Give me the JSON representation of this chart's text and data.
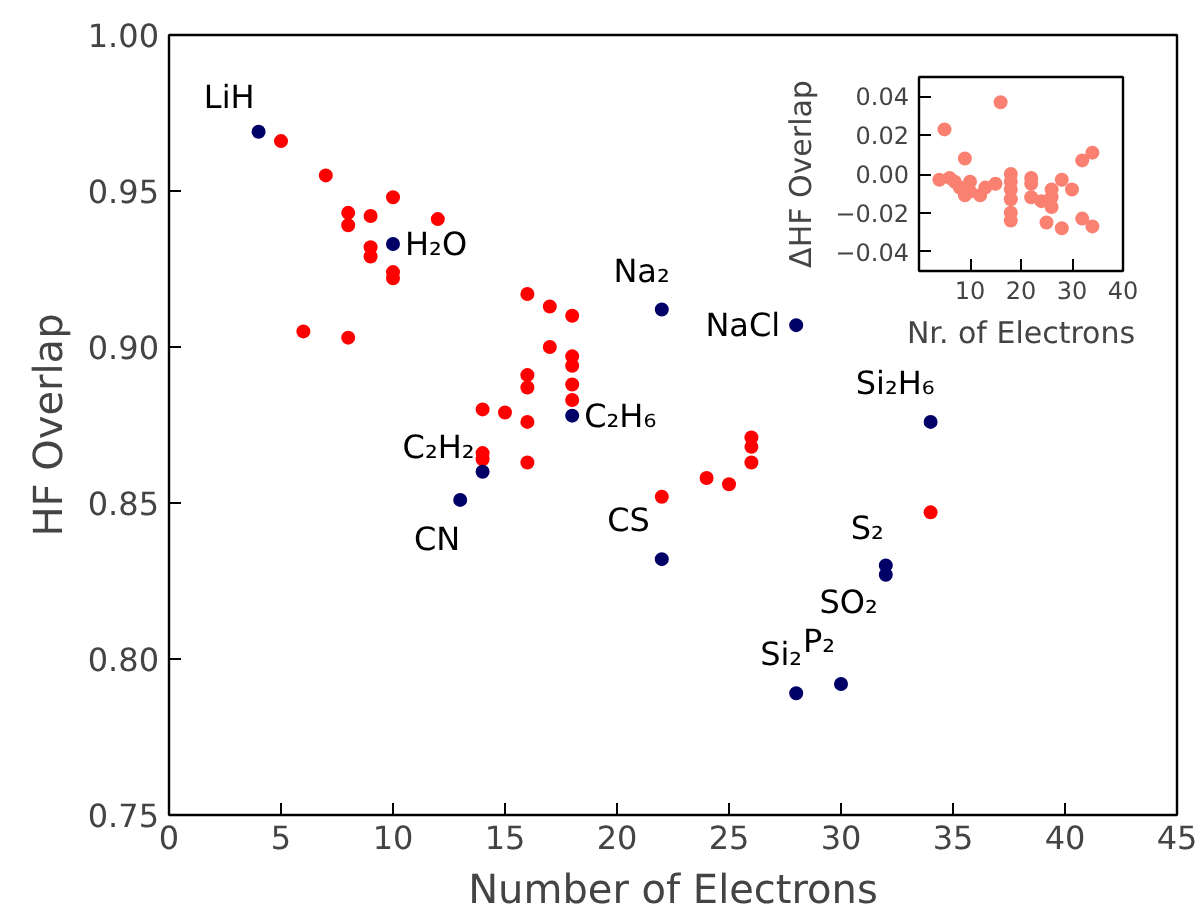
{
  "chart_data": [
    {
      "type": "scatter",
      "xlabel": "Number of Electrons",
      "ylabel": "HF Overlap",
      "xlim": [
        0,
        45
      ],
      "xticks": [
        0,
        5,
        10,
        15,
        20,
        25,
        30,
        35,
        40,
        45
      ],
      "ylim": [
        0.75,
        1.0
      ],
      "yticks": [
        {
          "value": 0.75,
          "label": "0.75"
        },
        {
          "value": 0.8,
          "label": "0.80"
        },
        {
          "value": 0.85,
          "label": "0.85"
        },
        {
          "value": 0.9,
          "label": "0.90"
        },
        {
          "value": 0.95,
          "label": "0.95"
        },
        {
          "value": 1.0,
          "label": "1.00"
        }
      ],
      "grid": false,
      "marker": "circle",
      "series": [
        {
          "color": "#ff0000",
          "x": [
            5,
            7,
            8,
            8,
            9,
            10,
            9,
            9,
            10,
            10,
            12,
            6,
            8,
            16,
            17,
            18,
            17,
            18,
            18,
            18,
            18,
            16,
            16,
            14,
            15,
            16,
            16,
            14,
            14,
            22,
            24,
            25,
            26,
            26,
            26,
            34
          ],
          "values": [
            0.966,
            0.955,
            0.943,
            0.939,
            0.942,
            0.948,
            0.932,
            0.929,
            0.924,
            0.922,
            0.941,
            0.905,
            0.903,
            0.917,
            0.913,
            0.91,
            0.9,
            0.897,
            0.894,
            0.888,
            0.883,
            0.891,
            0.887,
            0.88,
            0.879,
            0.876,
            0.863,
            0.866,
            0.864,
            0.852,
            0.858,
            0.856,
            0.871,
            0.868,
            0.863,
            0.847
          ]
        },
        {
          "color": "#000066",
          "x": [
            4,
            10,
            22,
            28,
            18,
            14,
            13,
            22,
            34,
            32,
            32,
            28,
            30
          ],
          "values": [
            0.969,
            0.933,
            0.912,
            0.907,
            0.878,
            0.86,
            0.851,
            0.832,
            0.876,
            0.83,
            0.827,
            0.789,
            0.792
          ]
        }
      ],
      "annotations": [
        {
          "text": "LiH",
          "x": 4,
          "y": 0.969
        },
        {
          "text": "H₂O",
          "x": 10,
          "y": 0.933
        },
        {
          "text": "Na₂",
          "x": 22,
          "y": 0.912
        },
        {
          "text": "NaCl",
          "x": 28,
          "y": 0.907
        },
        {
          "text": "C₂H₆",
          "x": 18,
          "y": 0.878
        },
        {
          "text": "C₂H₂",
          "x": 14,
          "y": 0.86
        },
        {
          "text": "CN",
          "x": 13,
          "y": 0.851
        },
        {
          "text": "CS",
          "x": 22,
          "y": 0.832
        },
        {
          "text": "Si₂H₆",
          "x": 34,
          "y": 0.876
        },
        {
          "text": "S₂",
          "x": 32,
          "y": 0.83
        },
        {
          "text": "SO₂",
          "x": 32,
          "y": 0.827
        },
        {
          "text": "Si₂",
          "x": 28,
          "y": 0.789
        },
        {
          "text": "P₂",
          "x": 30,
          "y": 0.792
        }
      ]
    },
    {
      "type": "scatter",
      "xlabel": "Nr. of Electrons",
      "ylabel": "ΔHF Overlap",
      "xlim": [
        0,
        40
      ],
      "xticks": [
        10,
        20,
        30,
        40
      ],
      "ylim": [
        -0.05,
        0.05
      ],
      "yticks": [
        {
          "value": -0.04,
          "label": "−0.04"
        },
        {
          "value": -0.02,
          "label": "−0.02"
        },
        {
          "value": 0,
          "label": "0.00"
        },
        {
          "value": 0.02,
          "label": "0.02"
        },
        {
          "value": 0.04,
          "label": "0.04"
        }
      ],
      "grid": false,
      "marker": "circle",
      "series": [
        {
          "color": "#fa8072",
          "x": [
            4,
            5,
            6,
            7,
            8,
            9,
            9,
            10,
            10,
            12,
            13,
            15,
            16,
            18,
            18,
            18,
            18,
            18,
            18,
            22,
            22,
            22,
            24,
            25,
            26,
            26,
            26,
            28,
            28,
            30,
            32,
            32,
            34,
            34
          ],
          "values": [
            -0.003,
            0.023,
            -0.002,
            -0.004,
            -0.007,
            0.008,
            -0.011,
            -0.004,
            -0.009,
            -0.011,
            -0.007,
            -0.005,
            0.037,
            0.0,
            -0.004,
            -0.008,
            -0.013,
            -0.02,
            -0.024,
            -0.002,
            -0.005,
            -0.012,
            -0.014,
            -0.025,
            -0.008,
            -0.012,
            -0.017,
            -0.003,
            -0.028,
            -0.008,
            0.007,
            -0.023,
            0.011,
            -0.027
          ]
        }
      ]
    }
  ]
}
